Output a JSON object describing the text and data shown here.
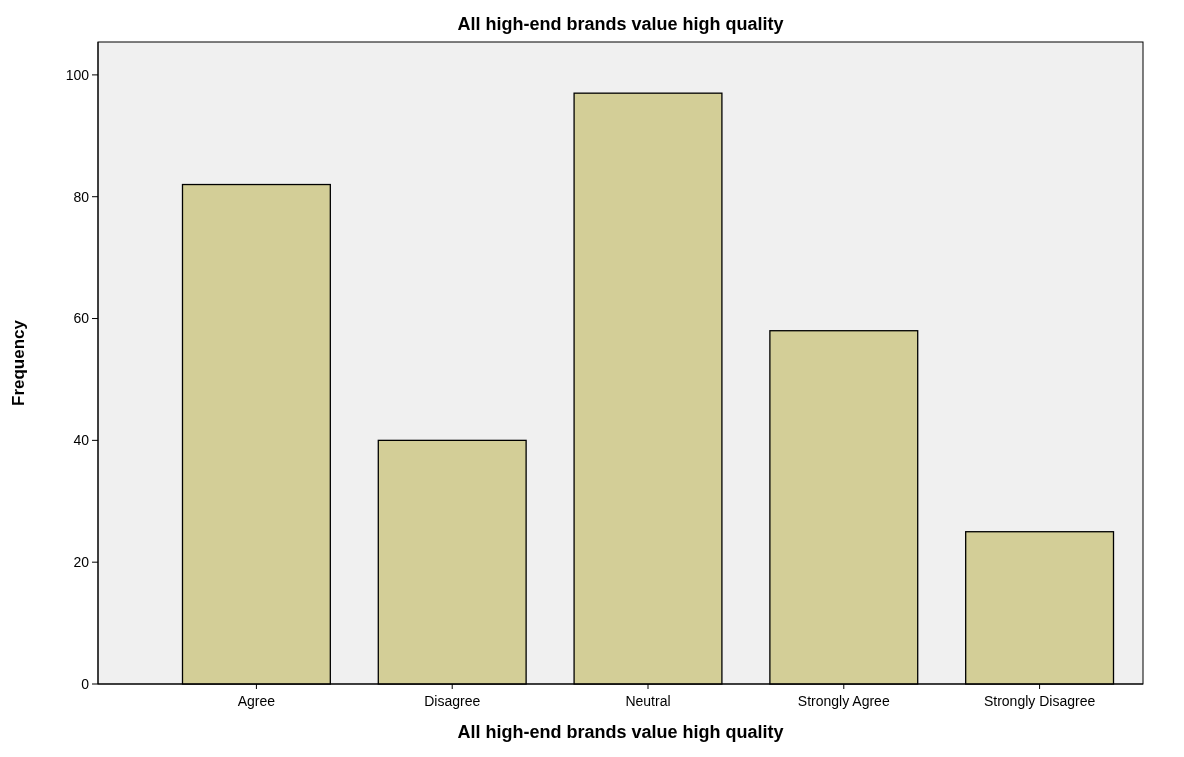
{
  "chart_data": {
    "type": "bar",
    "title": "All high-end brands value high quality",
    "xlabel": "All high-end brands value high quality",
    "ylabel": "Frequency",
    "categories": [
      "Agree",
      "Disagree",
      "Neutral",
      "Strongly Agree",
      "Strongly Disagree"
    ],
    "values": [
      82,
      40,
      97,
      58,
      25
    ],
    "color": "#d3ce97",
    "ylim": [
      0,
      105.4
    ],
    "yticks": [
      0,
      20,
      40,
      60,
      80,
      100
    ],
    "grid": false
  }
}
